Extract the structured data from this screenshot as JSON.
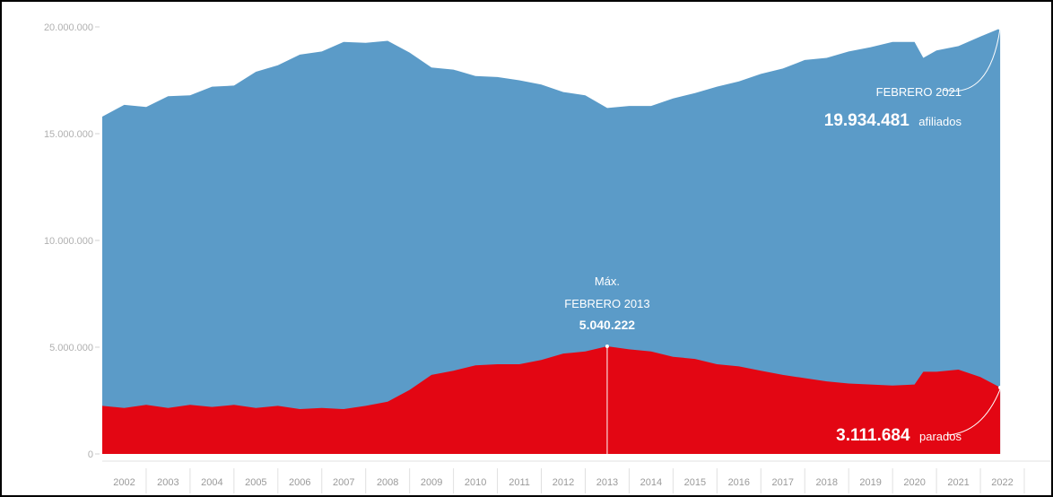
{
  "chart_data": {
    "type": "area",
    "x_range": [
      2001.5,
      2022.5
    ],
    "ylim": [
      0,
      20000000
    ],
    "y_ticks": [
      {
        "value": 20000000,
        "label": "20.000.000"
      },
      {
        "value": 15000000,
        "label": "15.000.000"
      },
      {
        "value": 10000000,
        "label": "10.000.000"
      },
      {
        "value": 5000000,
        "label": "5.000.000"
      },
      {
        "value": 0,
        "label": "0"
      }
    ],
    "x_ticks": [
      "2002",
      "2003",
      "2004",
      "2005",
      "2006",
      "2007",
      "2008",
      "2009",
      "2010",
      "2011",
      "2012",
      "2013",
      "2014",
      "2015",
      "2016",
      "2017",
      "2018",
      "2019",
      "2020",
      "2021",
      "2022"
    ],
    "series": [
      {
        "color": "#5b9bc8",
        "points": [
          [
            2001.5,
            15800000
          ],
          [
            2002.0,
            16350000
          ],
          [
            2002.5,
            16250000
          ],
          [
            2003.0,
            16750000
          ],
          [
            2003.5,
            16800000
          ],
          [
            2004.0,
            17200000
          ],
          [
            2004.5,
            17250000
          ],
          [
            2005.0,
            17900000
          ],
          [
            2005.5,
            18200000
          ],
          [
            2006.0,
            18700000
          ],
          [
            2006.5,
            18850000
          ],
          [
            2007.0,
            19300000
          ],
          [
            2007.5,
            19250000
          ],
          [
            2008.0,
            19350000
          ],
          [
            2008.5,
            18800000
          ],
          [
            2009.0,
            18100000
          ],
          [
            2009.5,
            18000000
          ],
          [
            2010.0,
            17700000
          ],
          [
            2010.5,
            17650000
          ],
          [
            2011.0,
            17500000
          ],
          [
            2011.5,
            17300000
          ],
          [
            2012.0,
            16950000
          ],
          [
            2012.5,
            16800000
          ],
          [
            2013.0,
            16200000
          ],
          [
            2013.5,
            16300000
          ],
          [
            2014.0,
            16300000
          ],
          [
            2014.5,
            16650000
          ],
          [
            2015.0,
            16900000
          ],
          [
            2015.5,
            17200000
          ],
          [
            2016.0,
            17450000
          ],
          [
            2016.5,
            17800000
          ],
          [
            2017.0,
            18050000
          ],
          [
            2017.5,
            18450000
          ],
          [
            2018.0,
            18550000
          ],
          [
            2018.5,
            18850000
          ],
          [
            2019.0,
            19050000
          ],
          [
            2019.5,
            19300000
          ],
          [
            2020.0,
            19300000
          ],
          [
            2020.2,
            18550000
          ],
          [
            2020.5,
            18900000
          ],
          [
            2021.0,
            19100000
          ],
          [
            2021.5,
            19550000
          ],
          [
            2021.95,
            19934481
          ]
        ]
      },
      {
        "color": "#e30613",
        "points": [
          [
            2001.5,
            2250000
          ],
          [
            2002.0,
            2150000
          ],
          [
            2002.5,
            2300000
          ],
          [
            2003.0,
            2150000
          ],
          [
            2003.5,
            2300000
          ],
          [
            2004.0,
            2200000
          ],
          [
            2004.5,
            2300000
          ],
          [
            2005.0,
            2150000
          ],
          [
            2005.5,
            2250000
          ],
          [
            2006.0,
            2100000
          ],
          [
            2006.5,
            2150000
          ],
          [
            2007.0,
            2100000
          ],
          [
            2007.5,
            2250000
          ],
          [
            2008.0,
            2450000
          ],
          [
            2008.5,
            3000000
          ],
          [
            2009.0,
            3700000
          ],
          [
            2009.5,
            3900000
          ],
          [
            2010.0,
            4150000
          ],
          [
            2010.5,
            4200000
          ],
          [
            2011.0,
            4200000
          ],
          [
            2011.5,
            4400000
          ],
          [
            2012.0,
            4700000
          ],
          [
            2012.5,
            4800000
          ],
          [
            2013.0,
            5040222
          ],
          [
            2013.5,
            4900000
          ],
          [
            2014.0,
            4800000
          ],
          [
            2014.5,
            4550000
          ],
          [
            2015.0,
            4450000
          ],
          [
            2015.5,
            4200000
          ],
          [
            2016.0,
            4100000
          ],
          [
            2016.5,
            3900000
          ],
          [
            2017.0,
            3700000
          ],
          [
            2017.5,
            3550000
          ],
          [
            2018.0,
            3400000
          ],
          [
            2018.5,
            3300000
          ],
          [
            2019.0,
            3250000
          ],
          [
            2019.5,
            3200000
          ],
          [
            2020.0,
            3250000
          ],
          [
            2020.2,
            3850000
          ],
          [
            2020.5,
            3850000
          ],
          [
            2021.0,
            3950000
          ],
          [
            2021.5,
            3600000
          ],
          [
            2021.95,
            3111684
          ]
        ]
      }
    ],
    "annotations": {
      "max_top": {
        "line1": "Máx.",
        "line2": "FEBRERO 2013",
        "value": "5.040.222",
        "x": 2013.0,
        "y": 5040222
      },
      "afiliados": {
        "line1": "FEBRERO 2021",
        "value": "19.934.481",
        "unit": "afiliados",
        "x": 2021.95,
        "y": 19934481
      },
      "parados": {
        "value": "3.111.684",
        "unit": "parados",
        "x": 2021.95,
        "y": 3111684
      }
    }
  }
}
